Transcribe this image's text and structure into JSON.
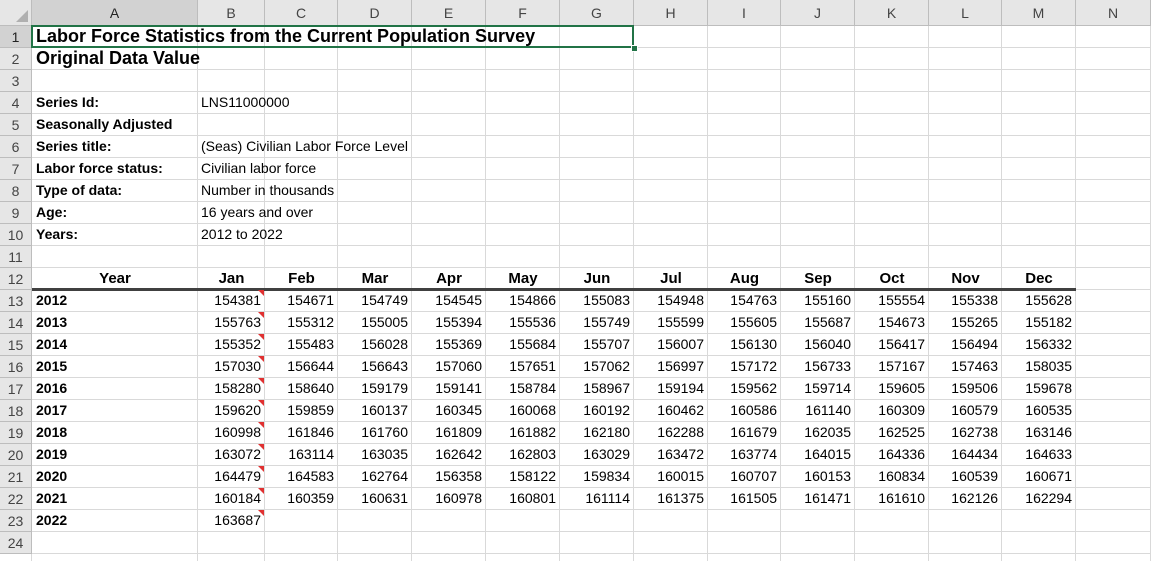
{
  "columns": [
    "A",
    "B",
    "C",
    "D",
    "E",
    "F",
    "G",
    "H",
    "I",
    "J",
    "K",
    "L",
    "M",
    "N"
  ],
  "rows": [
    "1",
    "2",
    "3",
    "4",
    "5",
    "6",
    "7",
    "8",
    "9",
    "10",
    "11",
    "12",
    "13",
    "14",
    "15",
    "16",
    "17",
    "18",
    "19",
    "20",
    "21",
    "22",
    "23",
    "24"
  ],
  "title": "Labor Force Statistics from the Current Population Survey",
  "subtitle": "Original Data Value",
  "meta": [
    {
      "label": "Series Id:",
      "value": "LNS11000000"
    },
    {
      "label": "Seasonally Adjusted",
      "value": ""
    },
    {
      "label": "Series title:",
      "value": "(Seas) Civilian Labor Force Level"
    },
    {
      "label": "Labor force status:",
      "value": "Civilian labor force"
    },
    {
      "label": "Type of data:",
      "value": "Number in thousands"
    },
    {
      "label": "Age:",
      "value": "16 years and over"
    },
    {
      "label": "Years:",
      "value": "2012 to 2022"
    }
  ],
  "table": {
    "headers": [
      "Year",
      "Jan",
      "Feb",
      "Mar",
      "Apr",
      "May",
      "Jun",
      "Jul",
      "Aug",
      "Sep",
      "Oct",
      "Nov",
      "Dec"
    ],
    "rows": [
      {
        "year": "2012",
        "values": [
          "154381",
          "154671",
          "154749",
          "154545",
          "154866",
          "155083",
          "154948",
          "154763",
          "155160",
          "155554",
          "155338",
          "155628"
        ]
      },
      {
        "year": "2013",
        "values": [
          "155763",
          "155312",
          "155005",
          "155394",
          "155536",
          "155749",
          "155599",
          "155605",
          "155687",
          "154673",
          "155265",
          "155182"
        ]
      },
      {
        "year": "2014",
        "values": [
          "155352",
          "155483",
          "156028",
          "155369",
          "155684",
          "155707",
          "156007",
          "156130",
          "156040",
          "156417",
          "156494",
          "156332"
        ]
      },
      {
        "year": "2015",
        "values": [
          "157030",
          "156644",
          "156643",
          "157060",
          "157651",
          "157062",
          "156997",
          "157172",
          "156733",
          "157167",
          "157463",
          "158035"
        ]
      },
      {
        "year": "2016",
        "values": [
          "158280",
          "158640",
          "159179",
          "159141",
          "158784",
          "158967",
          "159194",
          "159562",
          "159714",
          "159605",
          "159506",
          "159678"
        ]
      },
      {
        "year": "2017",
        "values": [
          "159620",
          "159859",
          "160137",
          "160345",
          "160068",
          "160192",
          "160462",
          "160586",
          "161140",
          "160309",
          "160579",
          "160535"
        ]
      },
      {
        "year": "2018",
        "values": [
          "160998",
          "161846",
          "161760",
          "161809",
          "161882",
          "162180",
          "162288",
          "161679",
          "162035",
          "162525",
          "162738",
          "163146"
        ]
      },
      {
        "year": "2019",
        "values": [
          "163072",
          "163114",
          "163035",
          "162642",
          "162803",
          "163029",
          "163472",
          "163774",
          "164015",
          "164336",
          "164434",
          "164633"
        ]
      },
      {
        "year": "2020",
        "values": [
          "164479",
          "164583",
          "162764",
          "156358",
          "158122",
          "159834",
          "160015",
          "160707",
          "160153",
          "160834",
          "160539",
          "160671"
        ]
      },
      {
        "year": "2021",
        "values": [
          "160184",
          "160359",
          "160631",
          "160978",
          "160801",
          "161114",
          "161375",
          "161505",
          "161471",
          "161610",
          "162126",
          "162294"
        ]
      },
      {
        "year": "2022",
        "values": [
          "163687"
        ]
      }
    ]
  },
  "colors": {
    "header_bg": "#e6e6e6",
    "grid": "#d9d9d9",
    "selection": "#217346",
    "comment": "#e03030"
  }
}
